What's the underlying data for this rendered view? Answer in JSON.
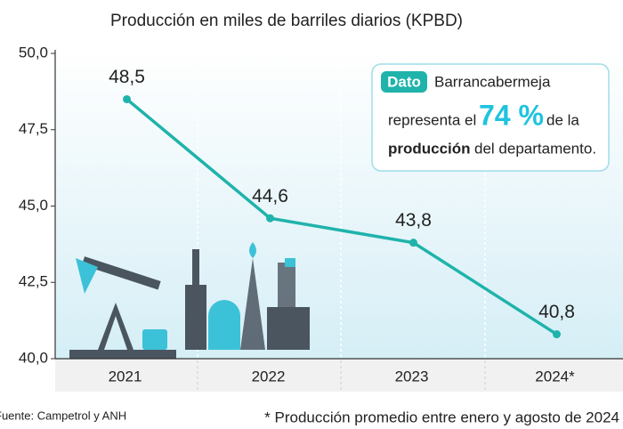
{
  "chart_data": {
    "type": "line",
    "title": "Producción en miles de barriles diarios (KPBD)",
    "categories": [
      "2021",
      "2022",
      "2023",
      "2024*"
    ],
    "values": [
      48.5,
      44.6,
      43.8,
      40.8
    ],
    "value_labels": [
      "48,5",
      "44,6",
      "43,8",
      "40,8"
    ],
    "color": "#1fb3ab",
    "ylim": [
      40,
      50
    ],
    "yticks": [
      {
        "value": 40,
        "label": "40,0"
      },
      {
        "value": 42.5,
        "label": "42,5"
      },
      {
        "value": 45,
        "label": "45,0"
      },
      {
        "value": 47.5,
        "label": "47,5"
      },
      {
        "value": 50,
        "label": "50,0"
      }
    ],
    "annotation": {
      "tag": "Dato",
      "text1": "Barrancabermeja",
      "text2": "representa el",
      "highlight": "74 %",
      "text3": "de la",
      "bold": "producción",
      "text4": "del departamento."
    },
    "source": "Fuente: Campetrol y ANH",
    "note": "* Producción promedio entre enero y agosto de 2024"
  }
}
